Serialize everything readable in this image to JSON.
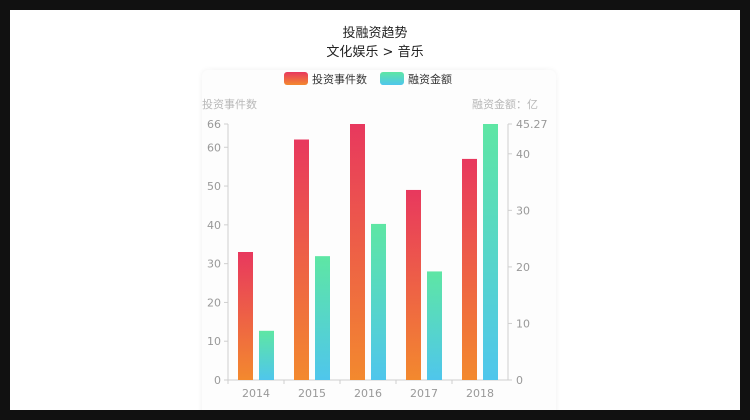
{
  "chart_data": {
    "type": "bar",
    "title": "投融资趋势",
    "subtitle": "文化娱乐 > 音乐",
    "categories": [
      "2014",
      "2015",
      "2016",
      "2017",
      "2018"
    ],
    "series": [
      {
        "name": "投资事件数",
        "axis": "left",
        "values": [
          33,
          62,
          66,
          49,
          57
        ],
        "colors": [
          "#e8385e",
          "#f3892e"
        ]
      },
      {
        "name": "融资金额",
        "axis": "right",
        "values": [
          8.7,
          21.9,
          27.6,
          19.2,
          45.27
        ],
        "colors": [
          "#5ee6a4",
          "#4fc6ec"
        ]
      }
    ],
    "left_axis": {
      "label": "投资事件数",
      "min": 0,
      "max": 66,
      "ticks": [
        "0",
        "10",
        "20",
        "30",
        "40",
        "50",
        "60",
        "66"
      ]
    },
    "right_axis": {
      "label": "融资金额：亿",
      "min": 0,
      "max": 45.27,
      "ticks": [
        "0",
        "10",
        "20",
        "30",
        "40",
        "45.27"
      ]
    },
    "legend_position": "top",
    "grid": false
  }
}
